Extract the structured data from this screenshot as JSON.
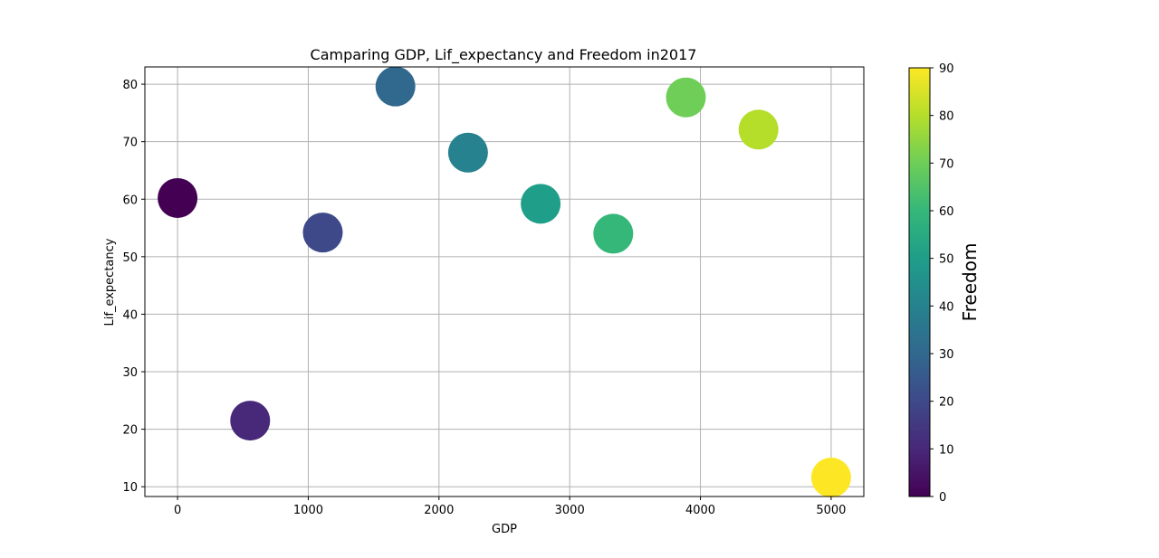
{
  "chart_data": {
    "type": "scatter",
    "title": "Camparing GDP, Lif_expectancy and Freedom in2017",
    "xlabel": "GDP",
    "ylabel": "Lif_expectancy",
    "xlim": [
      -250,
      5250
    ],
    "ylim": [
      8.3,
      83
    ],
    "xticks": [
      0,
      1000,
      2000,
      3000,
      4000,
      5000
    ],
    "yticks": [
      10,
      20,
      30,
      40,
      50,
      60,
      70,
      80
    ],
    "grid": true,
    "colormap": "viridis",
    "points": [
      {
        "x": 0,
        "y": 60.2,
        "freedom": 0
      },
      {
        "x": 555.6,
        "y": 21.5,
        "freedom": 10
      },
      {
        "x": 1111.1,
        "y": 54.2,
        "freedom": 20
      },
      {
        "x": 1666.7,
        "y": 79.6,
        "freedom": 30
      },
      {
        "x": 2222.2,
        "y": 68.1,
        "freedom": 40
      },
      {
        "x": 2777.8,
        "y": 59.2,
        "freedom": 50
      },
      {
        "x": 3333.3,
        "y": 54.0,
        "freedom": 60
      },
      {
        "x": 3888.9,
        "y": 77.7,
        "freedom": 70
      },
      {
        "x": 4444.4,
        "y": 72.1,
        "freedom": 80
      },
      {
        "x": 5000,
        "y": 11.6,
        "freedom": 90
      }
    ],
    "colorbar": {
      "label": "Freedom",
      "range": [
        0,
        90
      ],
      "ticks": [
        0,
        10,
        20,
        30,
        40,
        50,
        60,
        70,
        80,
        90
      ]
    }
  }
}
